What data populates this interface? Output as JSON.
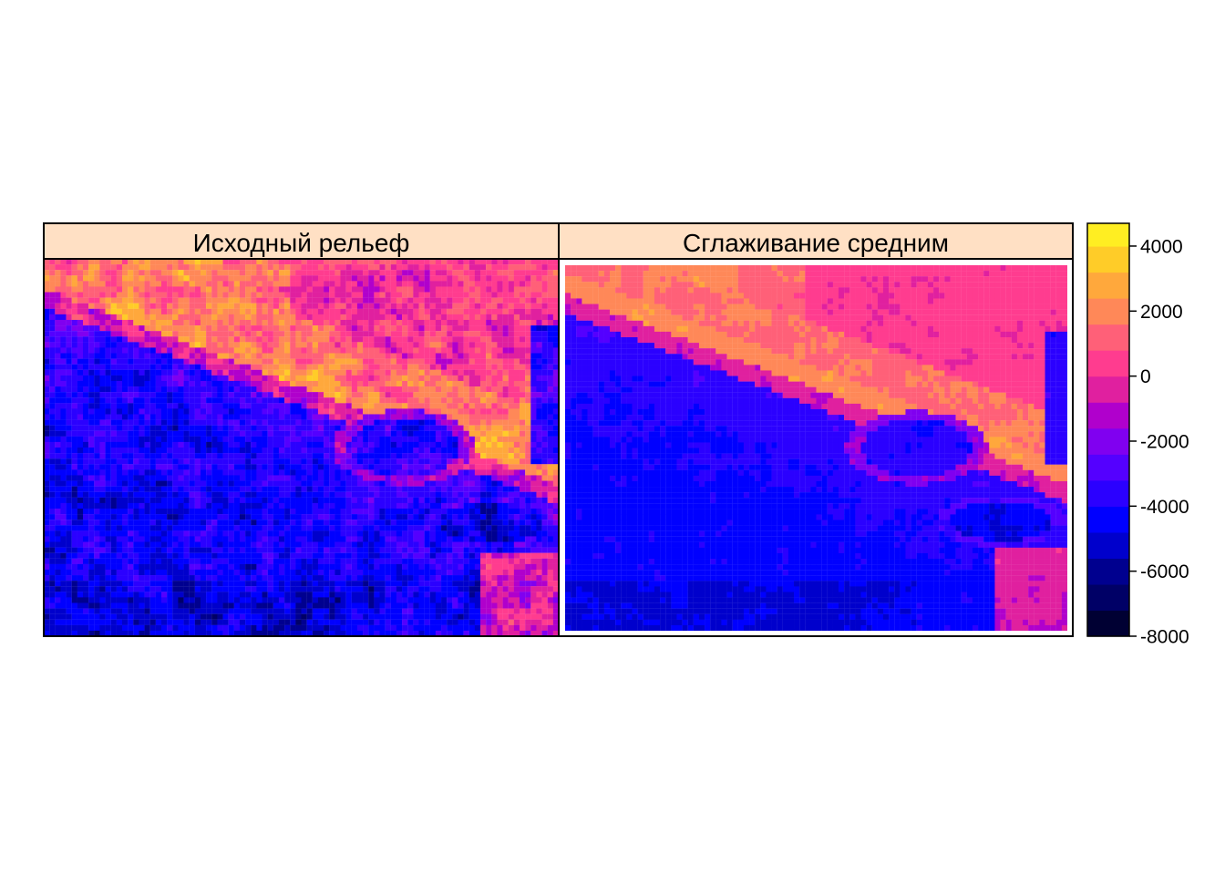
{
  "chart_data": {
    "type": "heatmap",
    "panels": [
      {
        "title": "Исходный рельеф"
      },
      {
        "title": "Сглаживание средним"
      }
    ],
    "colorbar": {
      "ticks": [
        "4000",
        "2000",
        "0",
        "-2000",
        "-4000",
        "-6000",
        "-8000"
      ],
      "tick_values": [
        4000,
        2000,
        0,
        -2000,
        -4000,
        -6000,
        -8000
      ],
      "range": [
        -8000,
        4700
      ],
      "levels": [
        -8000,
        -7200,
        -6400,
        -5600,
        -4800,
        -4000,
        -3200,
        -2400,
        -1600,
        -800,
        0,
        800,
        1600,
        2400,
        3200,
        4000,
        4700
      ],
      "colors": [
        "#000033",
        "#000066",
        "#00008f",
        "#0000cc",
        "#0000ff",
        "#2b00ff",
        "#5400ff",
        "#8000f0",
        "#b000cc",
        "#e0209f",
        "#ff3c8f",
        "#ff6078",
        "#ff8858",
        "#ffa83c",
        "#ffcc28",
        "#ffee22"
      ]
    },
    "strip_color": "#ffe0c4"
  }
}
